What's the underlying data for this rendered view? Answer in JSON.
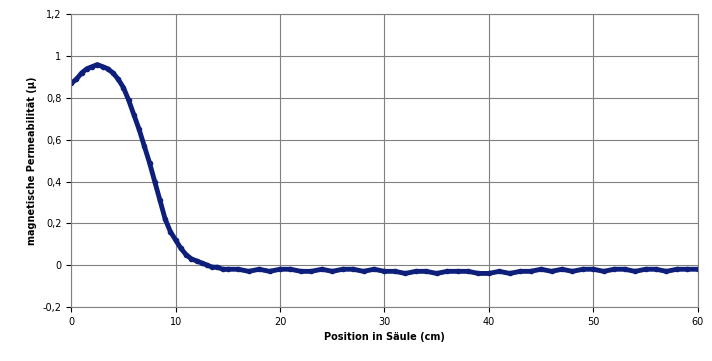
{
  "chart_data": {
    "type": "line",
    "x_label": "Position in Säule (cm)",
    "y_label": "magnetische Permeabilität (µ)",
    "x": [
      0,
      0.5,
      1,
      1.5,
      2,
      2.5,
      3,
      3.5,
      4,
      4.5,
      5,
      5.5,
      6,
      6.5,
      7,
      7.5,
      8,
      8.5,
      9,
      9.5,
      10,
      10.5,
      11,
      11.5,
      12,
      12.5,
      13,
      13.5,
      14,
      14.5,
      15,
      16,
      17,
      18,
      19,
      20,
      21,
      22,
      23,
      24,
      25,
      26,
      27,
      28,
      29,
      30,
      31,
      32,
      33,
      34,
      35,
      36,
      37,
      38,
      39,
      40,
      41,
      42,
      43,
      44,
      45,
      46,
      47,
      48,
      49,
      50,
      51,
      52,
      53,
      54,
      55,
      56,
      57,
      58,
      59,
      60
    ],
    "values": [
      0.87,
      0.89,
      0.92,
      0.94,
      0.95,
      0.96,
      0.95,
      0.94,
      0.92,
      0.89,
      0.85,
      0.79,
      0.72,
      0.65,
      0.57,
      0.49,
      0.4,
      0.31,
      0.22,
      0.16,
      0.12,
      0.08,
      0.05,
      0.03,
      0.02,
      0.01,
      0.0,
      -0.01,
      -0.01,
      -0.02,
      -0.02,
      -0.02,
      -0.03,
      -0.02,
      -0.03,
      -0.02,
      -0.02,
      -0.03,
      -0.03,
      -0.02,
      -0.03,
      -0.02,
      -0.02,
      -0.03,
      -0.02,
      -0.03,
      -0.03,
      -0.04,
      -0.03,
      -0.03,
      -0.04,
      -0.03,
      -0.03,
      -0.03,
      -0.04,
      -0.04,
      -0.03,
      -0.04,
      -0.03,
      -0.03,
      -0.02,
      -0.03,
      -0.02,
      -0.03,
      -0.02,
      -0.02,
      -0.03,
      -0.02,
      -0.02,
      -0.03,
      -0.02,
      -0.02,
      -0.03,
      -0.02,
      -0.02,
      -0.02
    ],
    "color": "#0d1f7a",
    "marker": "o",
    "line_style": "solid",
    "xlim": [
      0,
      60
    ],
    "xticks": [
      0,
      10,
      20,
      30,
      40,
      50,
      60
    ],
    "ylim": [
      -0.2,
      1.2
    ],
    "yticks": [
      {
        "value": -0.2,
        "label": "-0,2"
      },
      0,
      {
        "value": 0.2,
        "label": "0,2"
      },
      {
        "value": 0.4,
        "label": "0,4"
      },
      {
        "value": 0.6,
        "label": "0,6"
      },
      {
        "value": 0.8,
        "label": "0,8"
      },
      1,
      {
        "value": 1.2,
        "label": "1,2"
      }
    ],
    "grid": true
  }
}
